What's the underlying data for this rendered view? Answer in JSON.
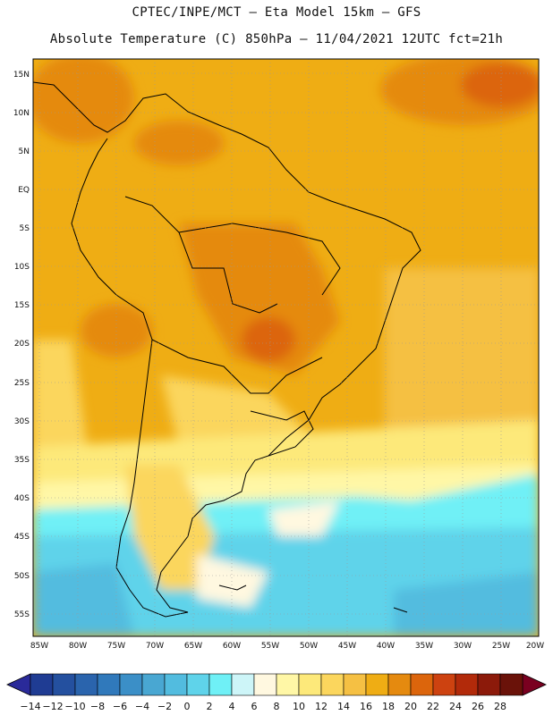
{
  "header": {
    "title_line1": "CPTEC/INPE/MCT –  Eta Model 15km – GFS",
    "title_line2": "Absolute Temperature (C) 850hPa – 11/04/2021 12UTC fct=21h"
  },
  "map": {
    "lat_labels": [
      "15N",
      "10N",
      "5N",
      "EQ",
      "5S",
      "10S",
      "15S",
      "20S",
      "25S",
      "30S",
      "35S",
      "40S",
      "45S",
      "50S",
      "55S"
    ],
    "lon_labels": [
      "85W",
      "80W",
      "75W",
      "70W",
      "65W",
      "60W",
      "55W",
      "50W",
      "45W",
      "40W",
      "35W",
      "30W",
      "25W",
      "20W"
    ]
  },
  "colorbar": {
    "labels": [
      "-14",
      "-12",
      "-10",
      "-8",
      "-6",
      "-4",
      "-2",
      "0",
      "2",
      "4",
      "6",
      "8",
      "10",
      "12",
      "14",
      "16",
      "18",
      "20",
      "22",
      "24",
      "26",
      "28"
    ],
    "colors": [
      "#1f3c93",
      "#24509f",
      "#2a64ad",
      "#3079bb",
      "#3b8fc7",
      "#49a7d2",
      "#52bcdf",
      "#5fd3ea",
      "#6ff0f6",
      "#cdf5f8",
      "#fff8e0",
      "#fff7a6",
      "#fde97a",
      "#fbd65d",
      "#f5c043",
      "#efad14",
      "#e58a0f",
      "#dc650c",
      "#cd4210",
      "#b22a0a",
      "#8c1a0a",
      "#6a1209"
    ]
  }
}
